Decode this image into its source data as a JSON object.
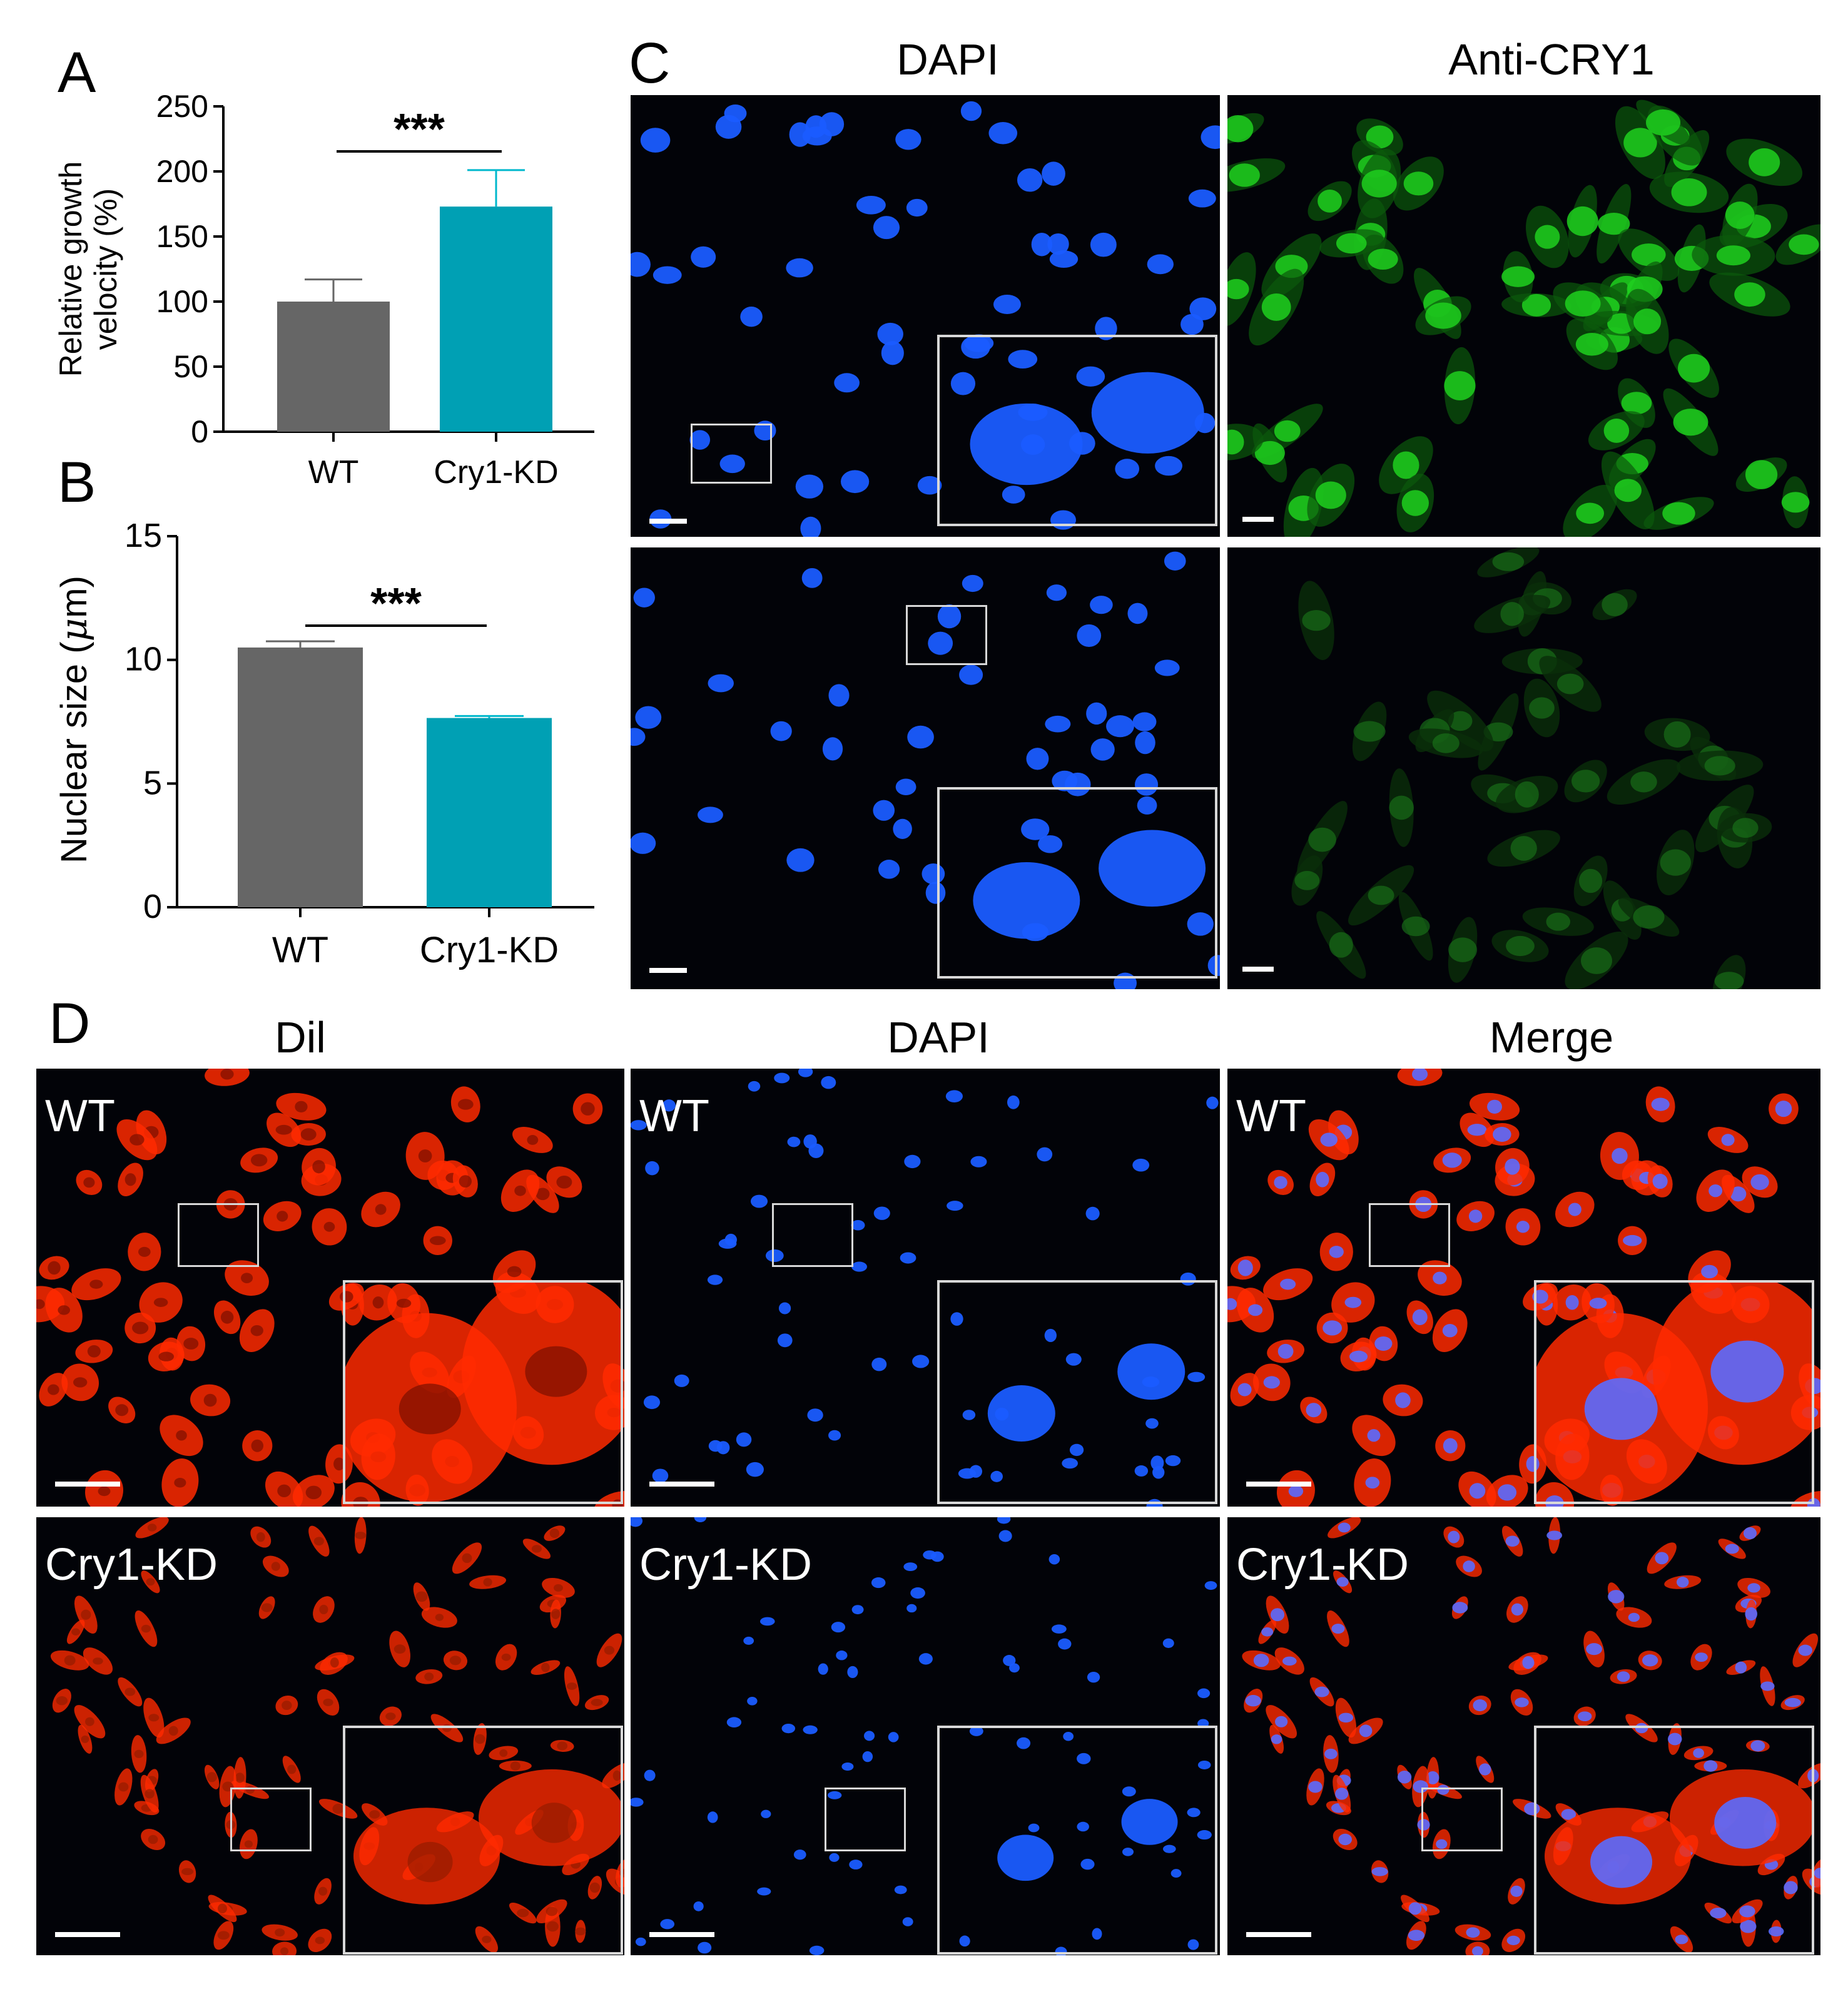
{
  "panel_letters": {
    "a": "A",
    "b": "B",
    "c": "C",
    "d": "D"
  },
  "chart_data": [
    {
      "type": "bar",
      "panel": "A",
      "categories": [
        "WT",
        "Cry1-KD"
      ],
      "values": [
        100,
        173
      ],
      "errors": [
        17,
        28
      ],
      "ylabel_line1": "Relative growth",
      "ylabel_line2": "velocity (%)",
      "ylim": [
        0,
        250
      ],
      "yticks": [
        0,
        50,
        100,
        150,
        200,
        250
      ],
      "significance": "***",
      "colors": [
        "#666666",
        "#00a0b4"
      ],
      "error_colors": [
        "#666666",
        "#00b8cc"
      ]
    },
    {
      "type": "bar",
      "panel": "B",
      "categories": [
        "WT",
        "Cry1-KD"
      ],
      "values": [
        10.5,
        7.65
      ],
      "errors": [
        0.25,
        0.08
      ],
      "ylabel_text": "Nuclear size (",
      "ylabel_mu": "μ",
      "ylabel_unit": "m)",
      "ylim": [
        0,
        15
      ],
      "yticks": [
        0,
        5,
        10,
        15
      ],
      "significance": "***",
      "colors": [
        "#666666",
        "#00a0b4"
      ],
      "error_colors": [
        "#666666",
        "#00b8cc"
      ]
    }
  ],
  "panel_c": {
    "titles": {
      "dapi": "DAPI",
      "cry1": "Anti-CRY1"
    }
  },
  "panel_d": {
    "titles": {
      "dil": "Dil",
      "dapi": "DAPI",
      "merge": "Merge"
    },
    "conditions": {
      "wt": "WT",
      "kd": "Cry1-KD"
    }
  },
  "stain_colors": {
    "dapi": "#1a5cff",
    "cry1_high": "#1fd01f",
    "cry1_low": "#1a7a1a",
    "dil": "#ff2a00"
  }
}
